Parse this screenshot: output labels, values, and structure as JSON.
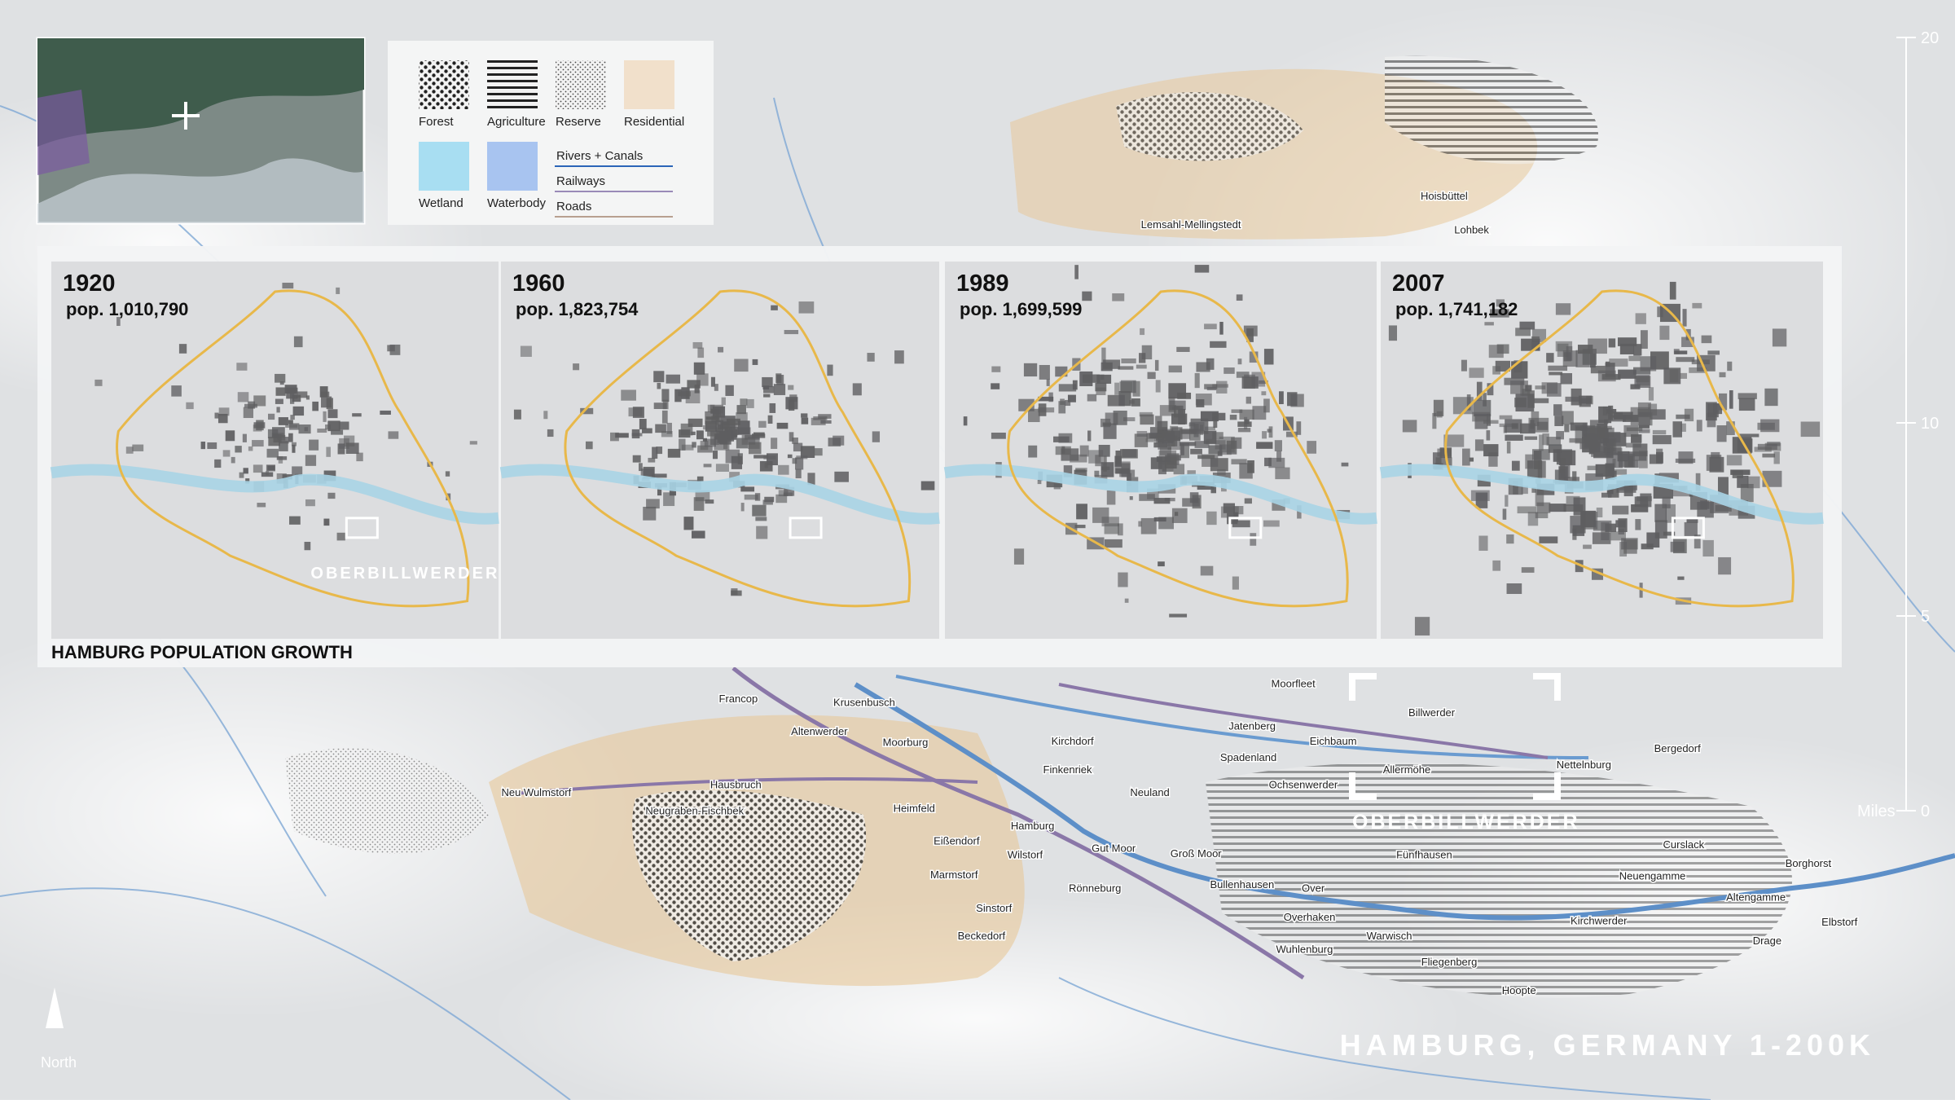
{
  "legend": {
    "items": [
      {
        "label": "Forest"
      },
      {
        "label": "Agriculture"
      },
      {
        "label": "Reserve"
      },
      {
        "label": "Residential"
      },
      {
        "label": "Wetland"
      },
      {
        "label": "Waterbody"
      }
    ],
    "lines": [
      {
        "label": "Rivers + Canals"
      },
      {
        "label": "Railways"
      },
      {
        "label": "Roads"
      }
    ]
  },
  "growth": {
    "title": "HAMBURG POPULATION GROWTH",
    "panels": [
      {
        "year": "1920",
        "population": "pop. 1,010,790",
        "site_label": "OBERBILLWERDER"
      },
      {
        "year": "1960",
        "population": "pop. 1,823,754"
      },
      {
        "year": "1989",
        "population": "pop. 1,699,599"
      },
      {
        "year": "2007",
        "population": "pop. 1,741,182"
      }
    ]
  },
  "places": [
    "Lemsahl-Mellingstedt",
    "Hoisbüttel",
    "Lohbek",
    "Francop",
    "Krusenbusch",
    "Altenwerder",
    "Moorburg",
    "Hausbruch",
    "Neu Wulmstorf",
    "Neugraben-Fischbek",
    "Heimfeld",
    "Eißendorf",
    "Marmstorf",
    "Sinstorf",
    "Beckedorf",
    "Kirchdorf",
    "Finkenriek",
    "Neuland",
    "Hamburg",
    "Wilstorf",
    "Gut Moor",
    "Rönneburg",
    "Groß Moor",
    "Bullenhausen",
    "Over",
    "Overhaken",
    "Wuhlenburg",
    "Warwisch",
    "Fünfhausen",
    "Ochsenwerder",
    "Spadenland",
    "Jatenberg",
    "Eichbaum",
    "Moorfleet",
    "Billwerder",
    "Allermöhe",
    "Nettelnburg",
    "Bergedorf",
    "Curslack",
    "Neuengamme",
    "Kirchwerder",
    "Fliegenberg",
    "Hoopte",
    "Altengamme",
    "Drage",
    "Borghorst",
    "Elbstorf"
  ],
  "site": {
    "label": "OBERBILLWERDER"
  },
  "scale": {
    "unit": "Miles",
    "ticks": [
      "20",
      "10",
      "5",
      "0"
    ]
  },
  "north": "North",
  "title": "HAMBURG, GERMANY 1-200K"
}
